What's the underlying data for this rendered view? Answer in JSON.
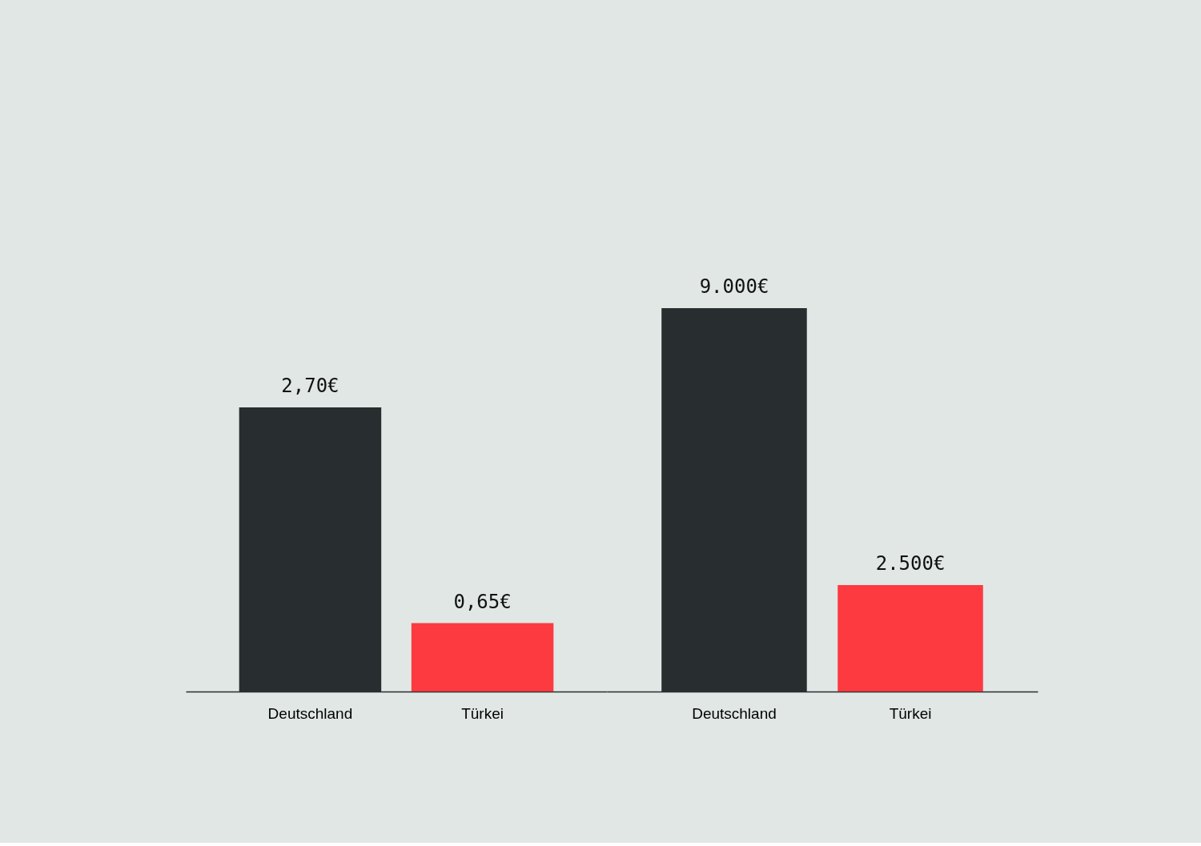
{
  "chart_data": [
    {
      "type": "bar",
      "categories": [
        "Deutschland",
        "Türkei"
      ],
      "values": [
        2.7,
        0.65
      ],
      "colors": [
        "#282d30",
        "#fc3a40"
      ],
      "value_labels": [
        "2,70€",
        "0,65€"
      ],
      "tick_labels": "x"
    },
    {
      "type": "bar",
      "categories": [
        "Deutschland",
        "Türkei"
      ],
      "values": [
        9000,
        2500
      ],
      "colors": [
        "#282d30",
        "#fc3a40"
      ],
      "value_labels": [
        "9.000€",
        "2.500€"
      ],
      "tick_labels": "x"
    }
  ]
}
